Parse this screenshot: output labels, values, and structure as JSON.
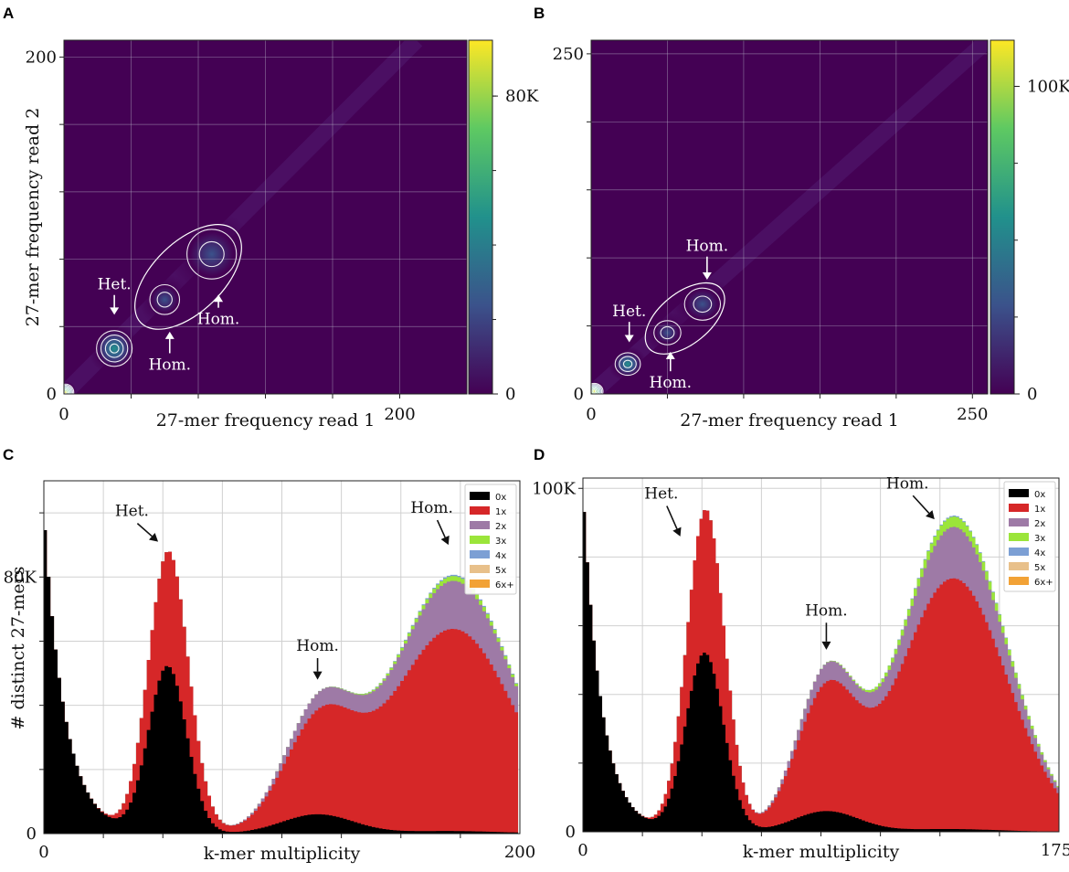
{
  "panels": {
    "A": {
      "letter": "A"
    },
    "B": {
      "letter": "B"
    },
    "C": {
      "letter": "C"
    },
    "D": {
      "letter": "D"
    }
  },
  "chart_data": [
    {
      "panel": "A",
      "type": "heatmap",
      "xlabel": "27-mer frequency read 1",
      "ylabel": "27-mer frequency read 2",
      "xlim": [
        0,
        240
      ],
      "ylim": [
        0,
        210
      ],
      "xticks": [
        {
          "v": 0,
          "label": "0"
        },
        {
          "v": 200,
          "label": "200"
        }
      ],
      "yticks": [
        {
          "v": 0,
          "label": "0"
        },
        {
          "v": 200,
          "label": "200"
        }
      ],
      "grid_step": 40,
      "colorbar": {
        "min": 0,
        "max": 95000,
        "ticks": [
          {
            "v": 0,
            "label": "0"
          },
          {
            "v": 80000,
            "label": "80K"
          }
        ]
      },
      "peaks": [
        {
          "x": 1,
          "y": 1,
          "height": 95000,
          "sigma": 2.5
        },
        {
          "x": 30,
          "y": 27,
          "height": 48000,
          "sigma": 6
        },
        {
          "x": 60,
          "y": 56,
          "height": 14000,
          "sigma": 6
        },
        {
          "x": 88,
          "y": 83,
          "height": 20000,
          "sigma": 10
        }
      ],
      "annotations": [
        {
          "text": "Het.",
          "x": 30,
          "y": 62,
          "arrow_to_y": 47,
          "text_pos": "above"
        },
        {
          "text": "Hom.",
          "x": 63,
          "y": 22,
          "arrow_to_y": 37,
          "text_pos": "below"
        },
        {
          "text": "Hom.",
          "x": 92,
          "y": 49,
          "arrow_to_y": 59,
          "text_pos": "below"
        }
      ]
    },
    {
      "panel": "B",
      "type": "heatmap",
      "xlabel": "27-mer frequency read 1",
      "ylabel": "",
      "xlim": [
        0,
        260
      ],
      "ylim": [
        0,
        260
      ],
      "xticks": [
        {
          "v": 0,
          "label": "0"
        },
        {
          "v": 250,
          "label": "250"
        }
      ],
      "yticks": [
        {
          "v": 0,
          "label": "0"
        },
        {
          "v": 250,
          "label": "250"
        }
      ],
      "grid_step": 50,
      "colorbar": {
        "min": 0,
        "max": 115000,
        "ticks": [
          {
            "v": 0,
            "label": "0"
          },
          {
            "v": 100000,
            "label": "100K"
          }
        ]
      },
      "peaks": [
        {
          "x": 2,
          "y": 2,
          "height": 115000,
          "sigma": 3
        },
        {
          "x": 24,
          "y": 22,
          "height": 55000,
          "sigma": 5
        },
        {
          "x": 50,
          "y": 45,
          "height": 16000,
          "sigma": 6
        },
        {
          "x": 73,
          "y": 66,
          "height": 28000,
          "sigma": 8
        }
      ],
      "annotations": [
        {
          "text": "Het.",
          "x": 25,
          "y": 57,
          "arrow_to_y": 38,
          "text_pos": "above"
        },
        {
          "text": "Hom.",
          "x": 52,
          "y": 14,
          "arrow_to_y": 31,
          "text_pos": "below"
        },
        {
          "text": "Hom.",
          "x": 76,
          "y": 105,
          "arrow_to_y": 84,
          "text_pos": "above"
        }
      ]
    },
    {
      "panel": "C",
      "type": "bar",
      "stacked": true,
      "xlabel": "k-mer multiplicity",
      "ylabel": "# distinct 27-mers",
      "xlim": [
        0,
        200
      ],
      "ylim": [
        0,
        110000
      ],
      "xticks": [
        {
          "v": 0,
          "label": "0"
        },
        {
          "v": 200,
          "label": "200"
        }
      ],
      "yticks": [
        {
          "v": 0,
          "label": "0"
        },
        {
          "v": 80000,
          "label": "80K"
        }
      ],
      "grid_step_x": 25,
      "grid_step_y": 20000,
      "bin_width": 1.5,
      "legend": {
        "position": "top-right",
        "entries": [
          "0x",
          "1x",
          "2x",
          "3x",
          "4x",
          "5x",
          "6x+"
        ]
      },
      "colors": [
        "#000000",
        "#d62728",
        "#9e7aa6",
        "#9be53a",
        "#7c9fd4",
        "#e8c08a",
        "#f2a236"
      ],
      "series": [
        {
          "name": "0x",
          "components": [
            {
              "type": "decay",
              "amp": 100000,
              "scale": 9
            },
            {
              "type": "gauss",
              "mu": 52,
              "sigma": 8,
              "amp": 52000
            },
            {
              "type": "gauss",
              "mu": 115,
              "sigma": 15,
              "amp": 6000
            },
            {
              "type": "gauss",
              "mu": 170,
              "sigma": 22,
              "amp": 800
            }
          ]
        },
        {
          "name": "1x",
          "components": [
            {
              "type": "gauss",
              "mu": 53,
              "sigma": 9,
              "amp": 36000
            },
            {
              "type": "gauss",
              "mu": 116,
              "sigma": 15,
              "amp": 27000
            },
            {
              "type": "gauss",
              "mu": 172,
              "sigma": 26,
              "amp": 63000
            }
          ]
        },
        {
          "name": "2x",
          "components": [
            {
              "type": "gauss",
              "mu": 116,
              "sigma": 14,
              "amp": 4500
            },
            {
              "type": "gauss",
              "mu": 173,
              "sigma": 23,
              "amp": 15000
            }
          ]
        },
        {
          "name": "3x",
          "components": [
            {
              "type": "gauss",
              "mu": 174,
              "sigma": 22,
              "amp": 1500
            }
          ]
        },
        {
          "name": "4x",
          "components": [
            {
              "type": "gauss",
              "mu": 174,
              "sigma": 22,
              "amp": 400
            }
          ]
        },
        {
          "name": "5x",
          "components": []
        },
        {
          "name": "6x+",
          "components": []
        }
      ],
      "annotations": [
        {
          "text": "Het.",
          "x": 37,
          "y": 99000,
          "arrow_to": [
            48,
            91000
          ]
        },
        {
          "text": "Hom.",
          "x": 115,
          "y": 57000,
          "arrow_to": [
            115,
            48000
          ]
        },
        {
          "text": "Hom.",
          "x": 163,
          "y": 100000,
          "arrow_to": [
            170,
            90000
          ]
        }
      ]
    },
    {
      "panel": "D",
      "type": "bar",
      "stacked": true,
      "xlabel": "k-mer multiplicity",
      "ylabel": "",
      "xlim": [
        0,
        176
      ],
      "ylim": [
        0,
        103000
      ],
      "xticks": [
        {
          "v": 0,
          "label": "0"
        },
        {
          "v": 175,
          "label": "175"
        }
      ],
      "yticks": [
        {
          "v": 0,
          "label": "0"
        },
        {
          "v": 100000,
          "label": "100K"
        }
      ],
      "grid_step_x": 22,
      "grid_step_y": 20000,
      "bin_width": 1.2,
      "legend": {
        "position": "top-right",
        "entries": [
          "0x",
          "1x",
          "2x",
          "3x",
          "4x",
          "5x",
          "6x+"
        ]
      },
      "colors": [
        "#000000",
        "#d62728",
        "#9e7aa6",
        "#9be53a",
        "#7c9fd4",
        "#e8c08a",
        "#f2a236"
      ],
      "series": [
        {
          "name": "0x",
          "components": [
            {
              "type": "decay",
              "amp": 100000,
              "scale": 7
            },
            {
              "type": "gauss",
              "mu": 45,
              "sigma": 7,
              "amp": 52000
            },
            {
              "type": "gauss",
              "mu": 90,
              "sigma": 12,
              "amp": 6000
            },
            {
              "type": "gauss",
              "mu": 135,
              "sigma": 18,
              "amp": 800
            }
          ]
        },
        {
          "name": "1x",
          "components": [
            {
              "type": "gauss",
              "mu": 46,
              "sigma": 7,
              "amp": 42000
            },
            {
              "type": "gauss",
              "mu": 90,
              "sigma": 11,
              "amp": 33000
            },
            {
              "type": "gauss",
              "mu": 137,
              "sigma": 20,
              "amp": 73000
            }
          ]
        },
        {
          "name": "2x",
          "components": [
            {
              "type": "gauss",
              "mu": 90,
              "sigma": 10,
              "amp": 5000
            },
            {
              "type": "gauss",
              "mu": 138,
              "sigma": 18,
              "amp": 15000
            }
          ]
        },
        {
          "name": "3x",
          "components": [
            {
              "type": "gauss",
              "mu": 138,
              "sigma": 18,
              "amp": 3000
            }
          ]
        },
        {
          "name": "4x",
          "components": [
            {
              "type": "gauss",
              "mu": 138,
              "sigma": 18,
              "amp": 300
            }
          ]
        },
        {
          "name": "5x",
          "components": []
        },
        {
          "name": "6x+",
          "components": []
        }
      ],
      "annotations": [
        {
          "text": "Het.",
          "x": 29,
          "y": 97000,
          "arrow_to": [
            36,
            86000
          ]
        },
        {
          "text": "Hom.",
          "x": 90,
          "y": 63000,
          "arrow_to": [
            90,
            53000
          ]
        },
        {
          "text": "Hom.",
          "x": 120,
          "y": 100000,
          "arrow_to": [
            130,
            91000
          ]
        }
      ]
    }
  ]
}
